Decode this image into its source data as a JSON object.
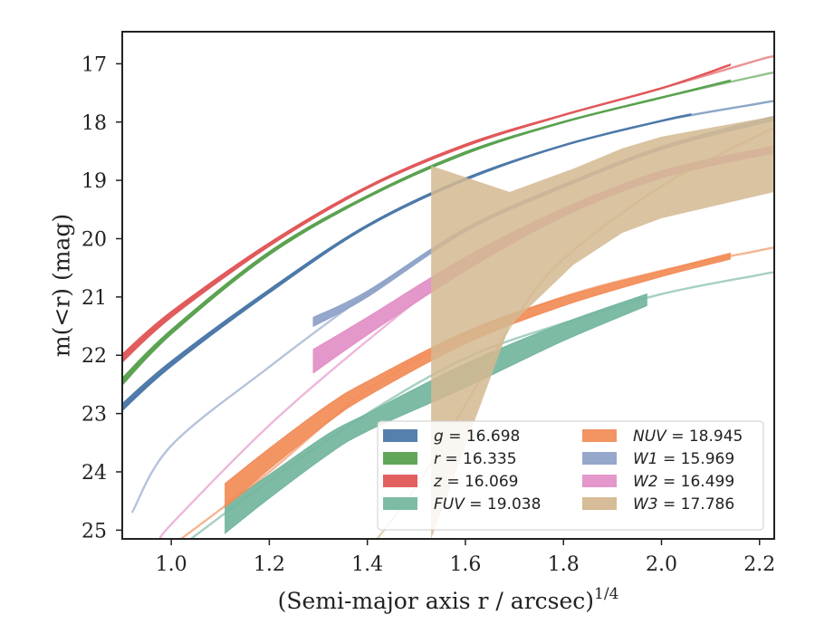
{
  "chart_data": {
    "type": "area",
    "title": "",
    "xlabel": "(Semi-major axis r / arcsec)^1/4",
    "ylabel": "m(<r) (mag)",
    "xlim": [
      0.9,
      2.23
    ],
    "ylim": [
      25.15,
      16.45
    ],
    "y_inverted": true,
    "grid": false,
    "legend_placement": "lower-right",
    "xticks": [
      1.0,
      1.2,
      1.4,
      1.6,
      1.8,
      2.0,
      2.2
    ],
    "xtick_labels": [
      "1.0",
      "1.2",
      "1.4",
      "1.6",
      "1.8",
      "2.0",
      "2.2"
    ],
    "yticks": [
      17,
      18,
      19,
      20,
      21,
      22,
      23,
      24,
      25
    ],
    "ytick_labels": [
      "17",
      "18",
      "19",
      "20",
      "21",
      "22",
      "23",
      "24",
      "25"
    ],
    "series": [
      {
        "name": "g = 16.698",
        "color": "#4c78a8",
        "model": {
          "x": [
            0.9,
            1.0,
            1.2,
            1.4,
            1.6,
            1.8,
            2.0,
            2.2,
            2.23
          ],
          "y": [
            22.9,
            22.15,
            20.9,
            19.78,
            18.98,
            18.4,
            17.98,
            17.68,
            17.64
          ]
        },
        "band": {
          "x": [
            0.9,
            1.0,
            1.2,
            1.4,
            1.6,
            1.8,
            2.0,
            2.06
          ],
          "y_low": [
            22.83,
            22.1,
            20.87,
            19.76,
            18.96,
            18.39,
            17.97,
            17.86
          ],
          "y_high": [
            22.95,
            22.19,
            20.93,
            19.8,
            19.0,
            18.41,
            17.99,
            17.88
          ]
        }
      },
      {
        "name": "r = 16.335",
        "color": "#59a14f",
        "model": {
          "x": [
            0.9,
            1.0,
            1.2,
            1.4,
            1.6,
            1.8,
            2.0,
            2.2,
            2.23
          ],
          "y": [
            22.45,
            21.6,
            20.25,
            19.28,
            18.53,
            18.0,
            17.58,
            17.2,
            17.15
          ]
        },
        "band": {
          "x": [
            0.9,
            1.0,
            1.2,
            1.4,
            1.6,
            1.8,
            2.0,
            2.14
          ],
          "y_low": [
            22.39,
            21.56,
            20.22,
            19.26,
            18.51,
            17.99,
            17.57,
            17.28
          ],
          "y_high": [
            22.51,
            21.64,
            20.28,
            19.3,
            18.55,
            18.01,
            17.59,
            17.3
          ]
        }
      },
      {
        "name": "z = 16.069",
        "color": "#e15759",
        "model": {
          "x": [
            0.9,
            1.0,
            1.2,
            1.4,
            1.6,
            1.8,
            2.0,
            2.2,
            2.23
          ],
          "y": [
            22.05,
            21.3,
            20.1,
            19.12,
            18.4,
            17.88,
            17.42,
            16.93,
            16.88
          ]
        },
        "band": {
          "x": [
            0.9,
            1.0,
            1.2,
            1.4,
            1.6,
            1.8,
            2.0,
            2.14
          ],
          "y_low": [
            21.98,
            21.25,
            20.07,
            19.1,
            18.38,
            17.87,
            17.41,
            17.01
          ],
          "y_high": [
            22.12,
            21.35,
            20.13,
            19.14,
            18.42,
            17.89,
            17.43,
            17.03
          ]
        }
      },
      {
        "name": "FUV = 19.038",
        "color": "#76b7a0",
        "model": {
          "x": [
            1.04,
            1.2,
            1.4,
            1.6,
            1.8,
            2.0,
            2.2,
            2.23
          ],
          "y": [
            25.15,
            24.15,
            23.0,
            22.05,
            21.45,
            20.95,
            20.62,
            20.58
          ]
        },
        "band": {
          "x": [
            1.11,
            1.2,
            1.32,
            1.4,
            1.6,
            1.8,
            1.97
          ],
          "y_low": [
            24.55,
            24.05,
            23.35,
            23.0,
            22.15,
            21.45,
            20.95
          ],
          "y_high": [
            25.05,
            24.45,
            23.7,
            23.3,
            22.55,
            21.75,
            21.15
          ]
        }
      },
      {
        "name": "NUV = 18.945",
        "color": "#f28e5b",
        "model": {
          "x": [
            1.02,
            1.2,
            1.4,
            1.6,
            1.8,
            2.0,
            2.2,
            2.23
          ],
          "y": [
            25.15,
            24.0,
            22.6,
            21.65,
            21.0,
            20.55,
            20.2,
            20.15
          ]
        },
        "band": {
          "x": [
            1.11,
            1.2,
            1.32,
            1.4,
            1.6,
            1.8,
            2.0,
            2.14
          ],
          "y_low": [
            24.2,
            23.6,
            22.85,
            22.45,
            21.6,
            21.0,
            20.55,
            20.25
          ],
          "y_high": [
            24.6,
            23.95,
            23.15,
            22.7,
            21.8,
            21.15,
            20.65,
            20.35
          ]
        }
      },
      {
        "name": "W1 = 15.969",
        "color": "#8fa3c9",
        "model": {
          "x": [
            0.92,
            1.0,
            1.2,
            1.4,
            1.6,
            1.8,
            2.0,
            2.2,
            2.23
          ],
          "y": [
            24.7,
            23.55,
            22.2,
            20.95,
            19.85,
            19.1,
            18.45,
            18.0,
            17.95
          ]
        },
        "band": {
          "x": [
            1.29,
            1.4,
            1.6,
            1.8,
            2.0,
            2.2,
            2.23
          ],
          "y_low": [
            21.35,
            20.9,
            19.82,
            19.07,
            18.42,
            17.96,
            17.91
          ],
          "y_high": [
            21.5,
            21.0,
            19.88,
            19.12,
            18.47,
            18.03,
            17.98
          ]
        }
      },
      {
        "name": "W2 = 16.499",
        "color": "#e391c7",
        "model": {
          "x": [
            0.98,
            1.0,
            1.2,
            1.4,
            1.6,
            1.8,
            2.0,
            2.2,
            2.23
          ],
          "y": [
            25.15,
            24.9,
            23.2,
            21.75,
            20.45,
            19.55,
            18.9,
            18.52,
            18.48
          ]
        },
        "band": {
          "x": [
            1.29,
            1.4,
            1.6,
            1.8,
            2.0,
            2.2,
            2.23
          ],
          "y_low": [
            21.9,
            21.35,
            20.32,
            19.48,
            18.84,
            18.46,
            18.42
          ],
          "y_high": [
            22.3,
            21.65,
            20.55,
            19.62,
            18.96,
            18.58,
            18.54
          ]
        }
      },
      {
        "name": "W3 = 17.786",
        "color": "#d4b891",
        "model": {
          "x": [
            1.42,
            1.5,
            1.6,
            1.7,
            1.8,
            2.0,
            2.2,
            2.23
          ],
          "y": [
            25.15,
            24.25,
            22.85,
            21.4,
            20.35,
            19.1,
            18.22,
            18.12
          ]
        },
        "band": {
          "x": [
            1.53,
            1.69,
            1.82,
            1.92,
            2.0,
            2.23
          ],
          "y_low": [
            18.75,
            19.2,
            18.8,
            18.45,
            18.25,
            17.9
          ],
          "y_high": [
            25.15,
            21.5,
            20.45,
            19.9,
            19.65,
            19.2
          ]
        }
      }
    ]
  }
}
